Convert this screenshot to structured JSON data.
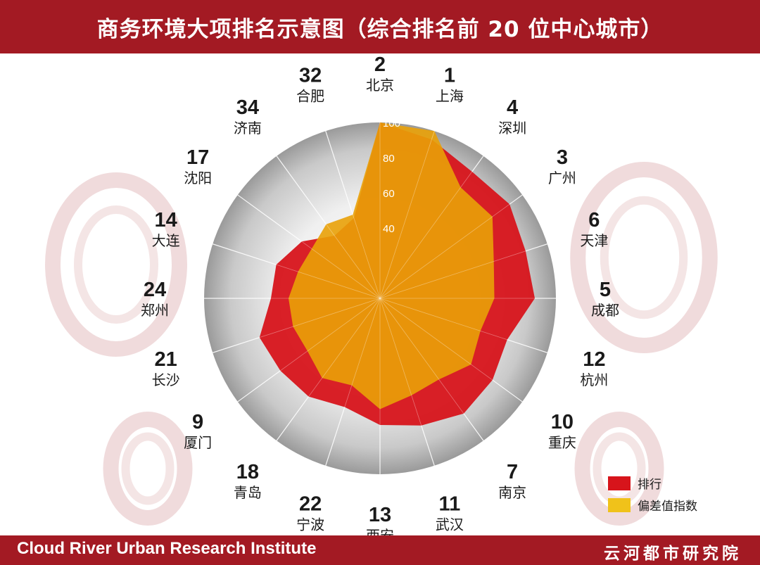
{
  "header": {
    "title": "商务环境大项排名示意图（综合排名前 20 位中心城市）"
  },
  "footer": {
    "institute_en": "Cloud River Urban Research Institute",
    "institute_cn": "云河都市研究院"
  },
  "colors": {
    "bar": "#a31a23",
    "rank": "#d7141b",
    "index": "#e9a108",
    "legend_index": "#f0c21a"
  },
  "chart_data": {
    "type": "radar",
    "title": "商务环境大项排名示意图（综合排名前 20 位中心城市）",
    "categories": [
      "北京",
      "上海",
      "深圳",
      "广州",
      "天津",
      "成都",
      "杭州",
      "重庆",
      "南京",
      "武汉",
      "西安",
      "宁波",
      "青岛",
      "厦门",
      "长沙",
      "郑州",
      "大连",
      "沈阳",
      "济南",
      "合肥"
    ],
    "ranks": [
      2,
      1,
      4,
      3,
      6,
      5,
      12,
      10,
      7,
      11,
      13,
      22,
      18,
      9,
      21,
      24,
      14,
      17,
      34,
      32
    ],
    "series": [
      {
        "name": "排行",
        "color": "#d7141b",
        "values": [
          100,
          95,
          89,
          91,
          87,
          88,
          76,
          79,
          81,
          76,
          72,
          65,
          69,
          70,
          72,
          62,
          62,
          55,
          44,
          48
        ]
      },
      {
        "name": "偏差值指数",
        "color": "#e9a108",
        "values": [
          100,
          100,
          78,
          79,
          68,
          65,
          60,
          64,
          57,
          58,
          63,
          52,
          56,
          51,
          52,
          52,
          49,
          48,
          52,
          50
        ]
      }
    ],
    "axis_ticks": [
      40,
      60,
      80,
      100
    ],
    "rlim": [
      0,
      100
    ],
    "legend": "bottom-right"
  }
}
